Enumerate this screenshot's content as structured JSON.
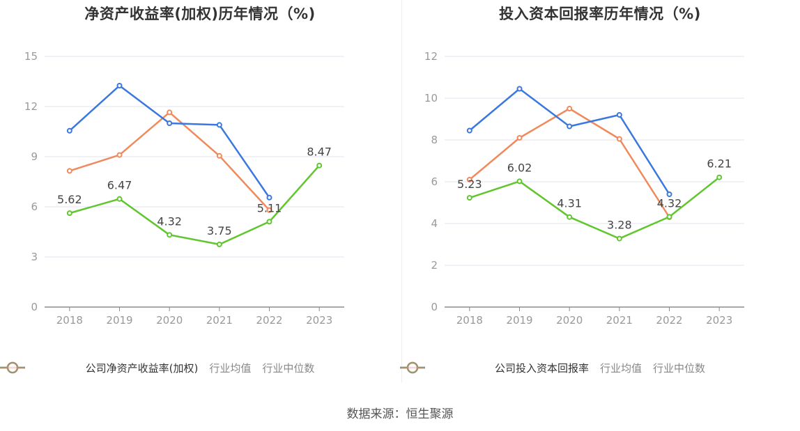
{
  "source": "数据来源：恒生聚源",
  "colors": {
    "company": "#5fc62d",
    "industry_avg": "#3a78e0",
    "industry_median": "#f08a5c"
  },
  "chart_data": [
    {
      "type": "line",
      "title": "净资产收益率(加权)历年情况（%)",
      "xlabel": "",
      "ylabel": "",
      "x": [
        "2018",
        "2019",
        "2020",
        "2021",
        "2022",
        "2023"
      ],
      "ylim": [
        0,
        15
      ],
      "yticks": [
        "0",
        "3",
        "6",
        "9",
        "12",
        "15"
      ],
      "grid": true,
      "legend_position": "bottom",
      "series": [
        {
          "name": "公司净资产收益率(加权)",
          "color_key": "company",
          "values": [
            5.62,
            6.47,
            4.32,
            3.75,
            5.11,
            8.47
          ],
          "labels": [
            "5.62",
            "6.47",
            "4.32",
            "3.75",
            "5.11",
            "8.47"
          ]
        },
        {
          "name": "行业均值",
          "color_key": "industry_avg",
          "values": [
            10.55,
            13.25,
            11.0,
            10.9,
            6.55,
            null
          ]
        },
        {
          "name": "行业中位数",
          "color_key": "industry_median",
          "values": [
            8.15,
            9.1,
            11.65,
            9.05,
            5.8,
            null
          ]
        }
      ]
    },
    {
      "type": "line",
      "title": "投入资本回报率历年情况（%)",
      "xlabel": "",
      "ylabel": "",
      "x": [
        "2018",
        "2019",
        "2020",
        "2021",
        "2022",
        "2023"
      ],
      "ylim": [
        0,
        12
      ],
      "yticks": [
        "0",
        "2",
        "4",
        "6",
        "8",
        "10",
        "12"
      ],
      "grid": true,
      "legend_position": "bottom",
      "series": [
        {
          "name": "公司投入资本回报率",
          "color_key": "company",
          "values": [
            5.23,
            6.02,
            4.31,
            3.28,
            4.32,
            6.21
          ],
          "labels": [
            "5.23",
            "6.02",
            "4.31",
            "3.28",
            "4.32",
            "6.21"
          ]
        },
        {
          "name": "行业均值",
          "color_key": "industry_avg",
          "values": [
            8.45,
            10.45,
            8.65,
            9.2,
            5.4,
            null
          ]
        },
        {
          "name": "行业中位数",
          "color_key": "industry_median",
          "values": [
            6.1,
            8.1,
            9.5,
            8.05,
            4.3,
            null
          ]
        }
      ]
    }
  ]
}
